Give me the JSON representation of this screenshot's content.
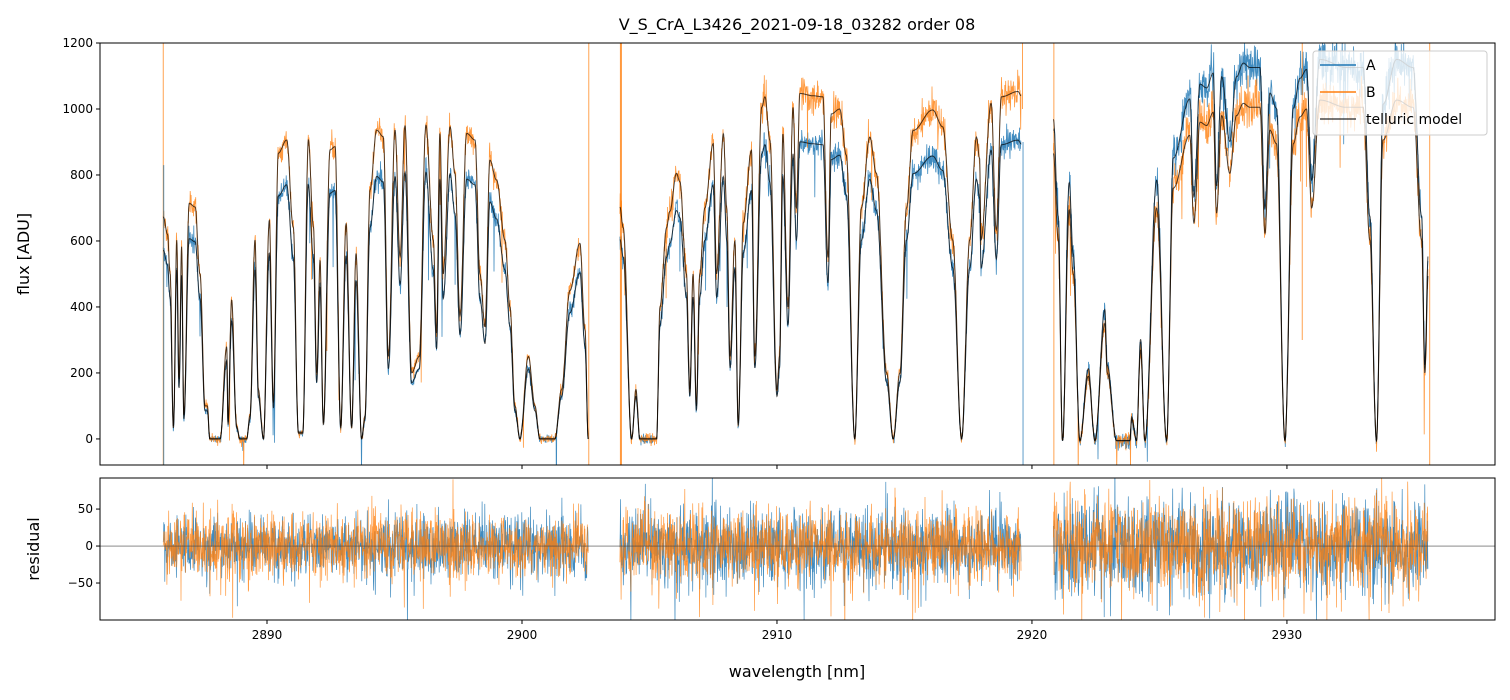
{
  "chart_data": [
    {
      "type": "line",
      "title": "V_S_CrA_L3426_2021-09-18_03282  order 08",
      "xlabel": "wavelength [nm]",
      "ylabel": "flux [ADU]",
      "xlim": [
        2883.45,
        2938.16
      ],
      "ylim": [
        -79,
        1200
      ],
      "xticks": [
        2890,
        2900,
        2910,
        2920,
        2930
      ],
      "xtick_labels": [
        "2890",
        "2900",
        "2910",
        "2920",
        "2930"
      ],
      "yticks": [
        0,
        200,
        400,
        600,
        800,
        1000,
        1200
      ],
      "ytick_labels": [
        "0",
        "200",
        "400",
        "600",
        "800",
        "1000",
        "1200"
      ],
      "legend": {
        "placement": "top-right",
        "entries": [
          "A",
          "B",
          "telluric model"
        ]
      },
      "colors": {
        "A": "#1f77b4",
        "B": "#ff7f0e",
        "model": "#000000"
      },
      "segments": [
        {
          "A_to_B_ratio": 0.85,
          "noise_B": 22,
          "noise_A": 18,
          "model_B": [
            [
              2885.93,
              673
            ],
            [
              2886.1,
              620
            ],
            [
              2886.2,
              500
            ],
            [
              2886.33,
              38
            ],
            [
              2886.46,
              603
            ],
            [
              2886.55,
              180
            ],
            [
              2886.65,
              583
            ],
            [
              2886.74,
              70
            ],
            [
              2886.95,
              714
            ],
            [
              2887.18,
              703
            ],
            [
              2887.37,
              500
            ],
            [
              2887.57,
              100
            ],
            [
              2887.66,
              100
            ],
            [
              2887.76,
              0
            ],
            [
              2888.16,
              0
            ],
            [
              2888.42,
              280
            ],
            [
              2888.47,
              50
            ],
            [
              2888.61,
              421
            ],
            [
              2888.81,
              38
            ],
            [
              2888.94,
              0
            ],
            [
              2889.2,
              0
            ],
            [
              2889.33,
              70
            ],
            [
              2889.53,
              603
            ],
            [
              2889.66,
              150
            ],
            [
              2889.86,
              0
            ],
            [
              2890.09,
              663
            ],
            [
              2890.25,
              110
            ],
            [
              2890.44,
              866
            ],
            [
              2890.77,
              906
            ],
            [
              2891.03,
              642
            ],
            [
              2891.23,
              20
            ],
            [
              2891.4,
              20
            ],
            [
              2891.62,
              906
            ],
            [
              2891.82,
              642
            ],
            [
              2891.95,
              200
            ],
            [
              2892.08,
              542
            ],
            [
              2892.21,
              50
            ],
            [
              2892.47,
              876
            ],
            [
              2892.67,
              886
            ],
            [
              2892.89,
              38
            ],
            [
              2893.1,
              653
            ],
            [
              2893.32,
              38
            ],
            [
              2893.49,
              562
            ],
            [
              2893.71,
              0
            ],
            [
              2893.84,
              70
            ],
            [
              2894.04,
              755
            ],
            [
              2894.3,
              936
            ],
            [
              2894.56,
              916
            ],
            [
              2894.76,
              250
            ],
            [
              2895.02,
              936
            ],
            [
              2895.22,
              552
            ],
            [
              2895.41,
              950
            ],
            [
              2895.67,
              200
            ],
            [
              2895.97,
              250
            ],
            [
              2896.23,
              951
            ],
            [
              2896.52,
              603
            ],
            [
              2896.65,
              320
            ],
            [
              2896.78,
              926
            ],
            [
              2896.91,
              500
            ],
            [
              2897.18,
              946
            ],
            [
              2897.37,
              805
            ],
            [
              2897.57,
              373
            ],
            [
              2897.83,
              926
            ],
            [
              2898.16,
              906
            ],
            [
              2898.35,
              500
            ],
            [
              2898.55,
              340
            ],
            [
              2898.74,
              845
            ],
            [
              2899.0,
              785
            ],
            [
              2899.33,
              603
            ],
            [
              2899.53,
              400
            ],
            [
              2899.72,
              100
            ],
            [
              2899.92,
              0
            ],
            [
              2900.25,
              250
            ],
            [
              2900.51,
              100
            ],
            [
              2900.7,
              0
            ],
            [
              2901.29,
              0
            ],
            [
              2901.55,
              150
            ],
            [
              2901.88,
              450
            ],
            [
              2902.27,
              593
            ],
            [
              2902.47,
              330
            ],
            [
              2902.6,
              0
            ]
          ]
        },
        {
          "A_to_B_ratio": 0.86,
          "noise_B": 25,
          "noise_A": 20,
          "model_B": [
            [
              2903.84,
              703
            ],
            [
              2903.97,
              640
            ],
            [
              2904.3,
              0
            ],
            [
              2904.47,
              150
            ],
            [
              2904.62,
              0
            ],
            [
              2905.28,
              0
            ],
            [
              2905.41,
              400
            ],
            [
              2905.67,
              640
            ],
            [
              2905.8,
              690
            ],
            [
              2906.06,
              805
            ],
            [
              2906.19,
              780
            ],
            [
              2906.45,
              500
            ],
            [
              2906.58,
              150
            ],
            [
              2906.71,
              500
            ],
            [
              2906.84,
              100
            ],
            [
              2906.97,
              500
            ],
            [
              2907.17,
              700
            ],
            [
              2907.5,
              895
            ],
            [
              2907.63,
              500
            ],
            [
              2907.9,
              925
            ],
            [
              2908.03,
              700
            ],
            [
              2908.16,
              250
            ],
            [
              2908.35,
              600
            ],
            [
              2908.48,
              47
            ],
            [
              2908.68,
              655
            ],
            [
              2909.0,
              875
            ],
            [
              2909.13,
              250
            ],
            [
              2909.4,
              1005
            ],
            [
              2909.53,
              1037
            ],
            [
              2909.72,
              906
            ],
            [
              2910.0,
              150
            ],
            [
              2910.1,
              250
            ],
            [
              2910.23,
              925
            ],
            [
              2910.43,
              400
            ],
            [
              2910.63,
              1005
            ],
            [
              2910.76,
              700
            ],
            [
              2910.9,
              1047
            ],
            [
              2911.42,
              1040
            ],
            [
              2911.8,
              1037
            ],
            [
              2912.0,
              550
            ],
            [
              2912.13,
              985
            ],
            [
              2912.46,
              1000
            ],
            [
              2912.72,
              860
            ],
            [
              2913.05,
              0
            ],
            [
              2913.31,
              700
            ],
            [
              2913.64,
              915
            ],
            [
              2913.9,
              805
            ],
            [
              2914.3,
              200
            ],
            [
              2914.56,
              0
            ],
            [
              2914.82,
              200
            ],
            [
              2915.08,
              700
            ],
            [
              2915.34,
              935
            ],
            [
              2916.1,
              997
            ],
            [
              2916.5,
              946
            ],
            [
              2916.89,
              603
            ],
            [
              2917.24,
              0
            ],
            [
              2917.56,
              603
            ],
            [
              2917.82,
              915
            ],
            [
              2917.95,
              850
            ],
            [
              2918.0,
              603
            ],
            [
              2918.4,
              1017
            ],
            [
              2918.6,
              634
            ],
            [
              2918.8,
              1037
            ],
            [
              2919.45,
              1053
            ],
            [
              2919.58,
              1040
            ]
          ]
        },
        {
          "A_to_B_ratio": 1.12,
          "noise_B": 30,
          "noise_A": 35,
          "model_B": [
            [
              2920.84,
              865
            ],
            [
              2921.03,
              603
            ],
            [
              2921.2,
              -5
            ],
            [
              2921.46,
              694
            ],
            [
              2921.62,
              500
            ],
            [
              2921.88,
              -5
            ],
            [
              2922.21,
              190
            ],
            [
              2922.47,
              -5
            ],
            [
              2922.86,
              350
            ],
            [
              2922.95,
              200
            ],
            [
              2923.32,
              -5
            ],
            [
              2923.84,
              -5
            ],
            [
              2923.91,
              60
            ],
            [
              2924.1,
              -5
            ],
            [
              2924.26,
              270
            ],
            [
              2924.43,
              -5
            ],
            [
              2924.89,
              700
            ],
            [
              2925.28,
              -5
            ],
            [
              2925.54,
              760
            ],
            [
              2926.19,
              920
            ],
            [
              2926.35,
              655
            ],
            [
              2926.59,
              960
            ],
            [
              2926.85,
              950
            ],
            [
              2927.11,
              990
            ],
            [
              2927.24,
              685
            ],
            [
              2927.44,
              980
            ],
            [
              2927.76,
              805
            ],
            [
              2928.02,
              980
            ],
            [
              2928.29,
              1017
            ],
            [
              2928.55,
              1005
            ],
            [
              2928.94,
              1005
            ],
            [
              2929.14,
              623
            ],
            [
              2929.33,
              936
            ],
            [
              2929.59,
              895
            ],
            [
              2929.92,
              -5
            ],
            [
              2930.25,
              895
            ],
            [
              2930.51,
              976
            ],
            [
              2930.77,
              1000
            ],
            [
              2930.97,
              700
            ],
            [
              2931.29,
              1027
            ],
            [
              2932.34,
              1005
            ],
            [
              2932.99,
              1005
            ],
            [
              2933.25,
              603
            ],
            [
              2933.51,
              -5
            ],
            [
              2933.77,
              906
            ],
            [
              2934.3,
              1027
            ],
            [
              2934.95,
              1005
            ],
            [
              2935.28,
              603
            ],
            [
              2935.41,
              200
            ],
            [
              2935.54,
              500
            ]
          ]
        }
      ],
      "spikes": [
        {
          "series": "B",
          "wavelength": 2885.93,
          "from": -79,
          "to": 1200
        },
        {
          "series": "A",
          "wavelength": 2885.95,
          "from": -79,
          "to": 830
        },
        {
          "series": "B",
          "wavelength": 2902.62,
          "from": -79,
          "to": 1200
        },
        {
          "series": "B",
          "wavelength": 2903.88,
          "from": -79,
          "to": 1200
        },
        {
          "series": "B",
          "wavelength": 2919.63,
          "from": 1000,
          "to": 1200
        },
        {
          "series": "A",
          "wavelength": 2919.65,
          "from": -79,
          "to": 900
        },
        {
          "series": "B",
          "wavelength": 2920.86,
          "from": -79,
          "to": 1200
        },
        {
          "series": "B",
          "wavelength": 2930.6,
          "from": 300,
          "to": 1200
        },
        {
          "series": "B",
          "wavelength": 2935.6,
          "from": -79,
          "to": 1200
        }
      ]
    },
    {
      "type": "line",
      "xlabel": "wavelength [nm]",
      "ylabel": "residual",
      "xlim": [
        2883.45,
        2938.16
      ],
      "ylim": [
        -100,
        92
      ],
      "yticks": [
        -50,
        0,
        50
      ],
      "ytick_labels": [
        "−50",
        "0",
        "50"
      ],
      "zero_line": true,
      "residual_std": {
        "segment_1": 22,
        "segment_2": 26,
        "segment_3": 34
      }
    }
  ]
}
